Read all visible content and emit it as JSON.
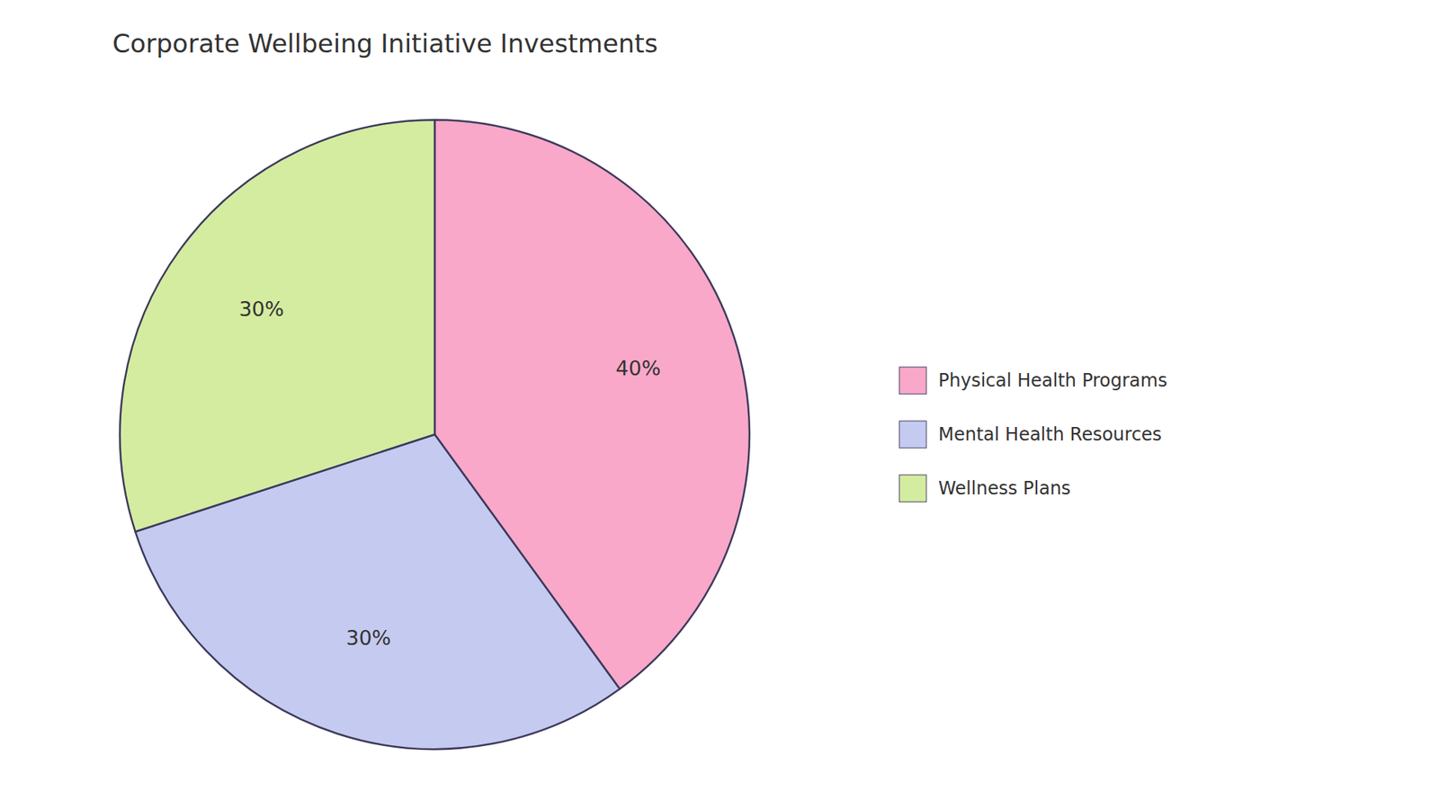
{
  "chart_data": {
    "type": "pie",
    "title": "Corporate Wellbeing Initiative Investments",
    "categories": [
      "Physical Health Programs",
      "Mental Health Resources",
      "Wellness Plans"
    ],
    "values": [
      40,
      30,
      30
    ],
    "value_labels": [
      "40%",
      "30%",
      "30%"
    ],
    "colors": [
      "#F9A8C9",
      "#C5CAF0",
      "#D4ECA0"
    ],
    "data_labels": true,
    "legend": "right"
  }
}
